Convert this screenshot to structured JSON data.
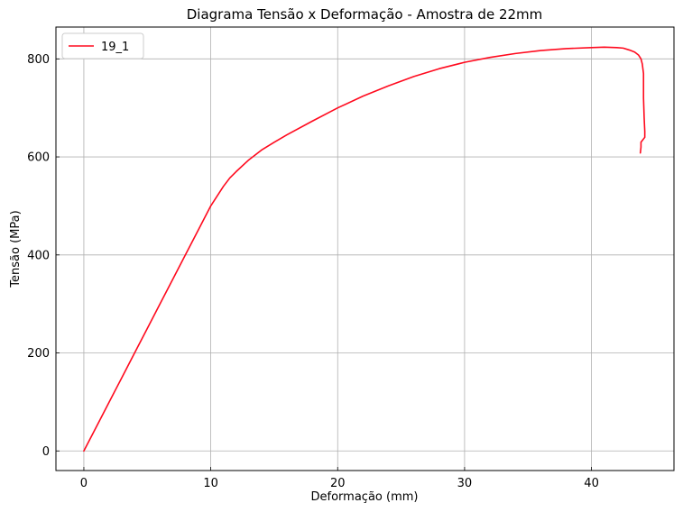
{
  "chart_data": {
    "type": "line",
    "title": "Diagrama Tensão x Deformação - Amostra de 22mm",
    "xlabel": "Deformação (mm)",
    "ylabel": "Tensão (MPa)",
    "xlim": [
      -2.2,
      46.5
    ],
    "ylim": [
      -40,
      865
    ],
    "xticks": [
      0,
      10,
      20,
      30,
      40
    ],
    "yticks": [
      0,
      200,
      400,
      600,
      800
    ],
    "grid": true,
    "legend": {
      "placement": "top-left"
    },
    "series": [
      {
        "name": "19_1",
        "color": "#ff0a1e",
        "x": [
          0,
          1,
          2,
          3,
          4,
          5,
          6,
          7,
          8,
          9,
          10,
          10.5,
          11,
          11.5,
          12,
          13,
          14,
          15,
          16,
          18,
          20,
          22,
          24,
          26,
          28,
          30,
          32,
          34,
          36,
          38,
          40,
          41,
          42,
          42.5,
          43,
          43.4,
          43.7,
          43.9,
          44.0,
          44.1,
          44.1,
          44.15,
          44.2,
          44.2,
          43.9,
          43.9,
          43.85
        ],
        "y": [
          0,
          50,
          100,
          150,
          200,
          250,
          300,
          350,
          400,
          450,
          500,
          520,
          540,
          557,
          570,
          594,
          614,
          630,
          645,
          673,
          700,
          724,
          745,
          764,
          780,
          793,
          803,
          811,
          817,
          821,
          823,
          824,
          823,
          822,
          818,
          814,
          808,
          800,
          790,
          770,
          720,
          680,
          652,
          640,
          630,
          620,
          608
        ]
      }
    ]
  }
}
